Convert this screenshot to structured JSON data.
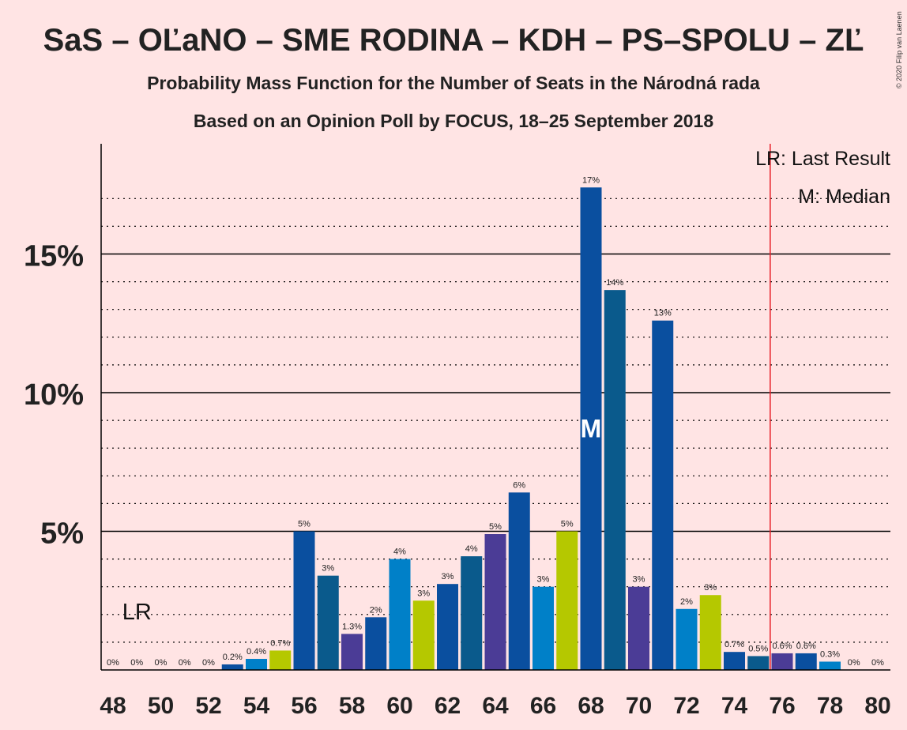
{
  "title": "SaS – OĽaNO – SME RODINA – KDH – PS–SPOLU – ZĽ",
  "subtitle1": "Probability Mass Function for the Number of Seats in the Národná rada",
  "subtitle2": "Based on an Opinion Poll by FOCUS, 18–25 September 2018",
  "copyright": "© 2020 Filip van Laenen",
  "legend": {
    "lr": "LR: Last Result",
    "median": "M: Median"
  },
  "lr_marker": "LR",
  "median_marker": "M",
  "chart_data": {
    "type": "bar",
    "x": [
      48,
      49,
      50,
      51,
      52,
      53,
      54,
      55,
      56,
      57,
      58,
      59,
      60,
      61,
      62,
      63,
      64,
      65,
      66,
      67,
      68,
      69,
      70,
      71,
      72,
      73,
      74,
      75,
      76,
      77,
      78,
      79,
      80
    ],
    "values": [
      0,
      0,
      0,
      0,
      0,
      0.2,
      0.4,
      0.7,
      5.0,
      3.4,
      1.3,
      1.9,
      4.0,
      2.5,
      3.1,
      4.1,
      4.9,
      6.4,
      3.0,
      5.0,
      17.4,
      13.7,
      3.0,
      12.6,
      2.2,
      2.7,
      0.65,
      0.5,
      0.6,
      0.6,
      0.3,
      0,
      0
    ],
    "labels": [
      "0%",
      "0%",
      "0%",
      "0%",
      "0%",
      "0.2%",
      "0.4%",
      "0.7%",
      "5%",
      "3%",
      "1.3%",
      "2%",
      "4%",
      "3%",
      "3%",
      "4%",
      "5%",
      "6%",
      "3%",
      "5%",
      "17%",
      "14%",
      "3%",
      "13%",
      "2%",
      "3%",
      "0.7%",
      "0.5%",
      "0.6%",
      "0.6%",
      "0.3%",
      "0%",
      "0%"
    ],
    "colors": [
      "#0a4f9f",
      "#0a4f9f",
      "#0a4f9f",
      "#0a4f9f",
      "#0a4f9f",
      "#0a4f9f",
      "#0080c8",
      "#b5c800",
      "#0a4f9f",
      "#0a5a8c",
      "#4b3c96",
      "#0a4f9f",
      "#0080c8",
      "#b5c800",
      "#0a4f9f",
      "#0a5a8c",
      "#4b3c96",
      "#0a4f9f",
      "#0080c8",
      "#b5c800",
      "#0a4f9f",
      "#0a5a8c",
      "#4b3c96",
      "#0a4f9f",
      "#0080c8",
      "#b5c800",
      "#0a4f9f",
      "#0a5a8c",
      "#4b3c96",
      "#0a4f9f",
      "#0080c8",
      "#b5c800",
      "#0a4f9f"
    ],
    "x_ticks": [
      48,
      50,
      52,
      54,
      56,
      58,
      60,
      62,
      64,
      66,
      68,
      70,
      72,
      74,
      76,
      78,
      80
    ],
    "y_ticks": [
      5,
      10,
      15
    ],
    "y_tick_labels": [
      "5%",
      "10%",
      "15%"
    ],
    "ylim": [
      0,
      19
    ],
    "last_result": 75.5,
    "median": 68,
    "lr_label_seat": 49,
    "grid": "dotted every 1%, solid every 5%",
    "legend_position": "top-right"
  }
}
